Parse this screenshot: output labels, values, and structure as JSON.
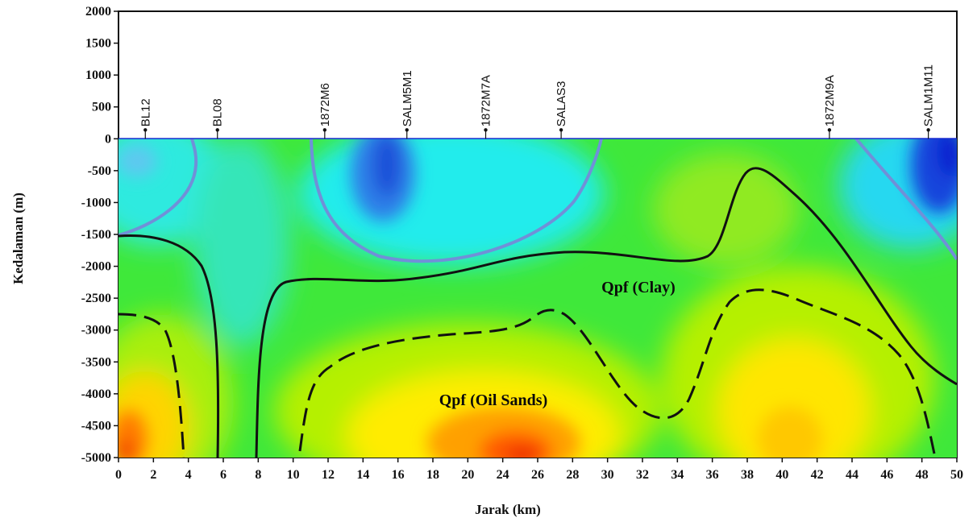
{
  "chart_data": {
    "type": "heatmap",
    "xlabel": "Jarak (km)",
    "ylabel": "Kedalaman (m)",
    "xlim": [
      0,
      50
    ],
    "ylim": [
      -5000,
      2000
    ],
    "x_ticks": [
      "0",
      "2",
      "4",
      "6",
      "8",
      "10",
      "12",
      "14",
      "16",
      "18",
      "20",
      "24",
      "26",
      "28",
      "30",
      "32",
      "34",
      "36",
      "38",
      "40",
      "42",
      "44",
      "46",
      "48",
      "50"
    ],
    "y_ticks": [
      "2000",
      "1500",
      "1000",
      "500",
      "0",
      "-500",
      "-1000",
      "-1500",
      "-2000",
      "-2500",
      "-3000",
      "-3500",
      "-4000",
      "-4500",
      "-5000"
    ],
    "wells": [
      {
        "name": "BL12",
        "x": 1.6
      },
      {
        "name": "BL08",
        "x": 5.9
      },
      {
        "name": "1872M6",
        "x": 12.3
      },
      {
        "name": "SALM5M1",
        "x": 17.2
      },
      {
        "name": "1872M7A",
        "x": 21.9
      },
      {
        "name": "SALAS3",
        "x": 26.4
      },
      {
        "name": "1872M9A",
        "x": 42.4
      },
      {
        "name": "SALM1M11",
        "x": 48.3
      }
    ],
    "zone_labels": [
      "Qpf (Clay)",
      "Qpf (Oil Sands)"
    ],
    "colors": {
      "deep_blue": "#0c2fd6",
      "cyan": "#14ecec",
      "green": "#2fe63a",
      "yellow_green": "#b8f200",
      "yellow": "#ffee00",
      "orange": "#ff8a00",
      "red": "#e81e00",
      "blue_contour": "#6f8fd8",
      "black_contour": "#111111"
    }
  }
}
